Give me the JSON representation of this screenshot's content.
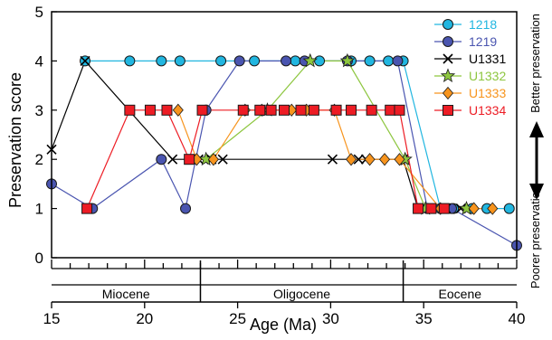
{
  "chart_data": {
    "type": "scatter",
    "xlabel": "Age (Ma)",
    "ylabel": "Preservation score",
    "xlim": [
      15,
      40
    ],
    "ylim": [
      0,
      5
    ],
    "x_ticks": [
      15,
      20,
      25,
      30,
      35,
      40
    ],
    "y_ticks": [
      0,
      1,
      2,
      3,
      4,
      5
    ],
    "grid": false,
    "legend_position": "top-right",
    "epochs": [
      {
        "name": "Miocene",
        "start": 15,
        "end": 23
      },
      {
        "name": "Oligocene",
        "start": 23,
        "end": 33.9
      },
      {
        "name": "Eocene",
        "start": 33.9,
        "end": 40
      }
    ],
    "right_annotations": {
      "top": "Better preservation",
      "bottom": "Poorer preservation"
    },
    "series": [
      {
        "name": "1218",
        "marker": "circle",
        "color": "#21b6e0",
        "label_color": "#21b6e0",
        "x": [
          16.8,
          19.2,
          20.9,
          21.9,
          24.1,
          25.9,
          28.1,
          29.4,
          31.1,
          32.1,
          33.1,
          33.9,
          35.9,
          36.6,
          37.6,
          38.4,
          39.6
        ],
        "y": [
          4,
          4,
          4,
          4,
          4,
          4,
          4,
          4,
          4,
          4,
          4,
          4,
          1,
          1,
          1,
          1,
          1
        ]
      },
      {
        "name": "1219",
        "marker": "circle",
        "color": "#4a55b0",
        "label_color": "#4a55b0",
        "x": [
          15.0,
          17.2,
          20.9,
          22.2,
          23.3,
          25.1,
          27.6,
          28.6,
          30.9,
          33.6,
          35.2,
          36.5,
          40.0
        ],
        "y": [
          1.5,
          1,
          2,
          1,
          3,
          4,
          4,
          4,
          4,
          4,
          1,
          1,
          0.25
        ]
      },
      {
        "name": "U1331",
        "marker": "x",
        "color": "#000000",
        "label_color": "#000000",
        "x": [
          15.0,
          16.8,
          21.5,
          22.9,
          23.6,
          24.2,
          30.1,
          31.5,
          31.9,
          33.9,
          34.7,
          35.4,
          36.2,
          37.0
        ],
        "y": [
          2.2,
          4,
          2,
          2,
          2,
          2,
          2,
          2,
          2,
          2,
          1,
          1,
          1,
          1
        ]
      },
      {
        "name": "U1332",
        "marker": "star",
        "color": "#8dc63f",
        "label_color": "#8dc63f",
        "x": [
          23.3,
          26.6,
          28.9,
          30.9,
          34.0,
          35.1,
          37.3
        ],
        "y": [
          2,
          3,
          4,
          4,
          2,
          1,
          1
        ]
      },
      {
        "name": "U1333",
        "marker": "diamond",
        "color": "#f7941d",
        "label_color": "#f7941d",
        "x": [
          21.8,
          22.8,
          23.7,
          25.4,
          26.3,
          27.9,
          28.7,
          30.2,
          31.1,
          32.1,
          32.9,
          33.7,
          35.9,
          37.7,
          38.7
        ],
        "y": [
          3,
          2,
          2,
          3,
          3,
          3,
          3,
          3,
          2,
          2,
          2,
          2,
          1,
          1,
          1
        ]
      },
      {
        "name": "U1334",
        "marker": "square",
        "color": "#ed1c24",
        "label_color": "#ed1c24",
        "x": [
          16.9,
          19.2,
          20.3,
          21.2,
          22.4,
          23.1,
          25.3,
          26.2,
          26.8,
          27.5,
          28.4,
          29.1,
          30.3,
          31.1,
          32.2,
          33.2,
          33.7,
          34.7,
          35.4,
          36.1
        ],
        "y": [
          1,
          3,
          3,
          3,
          2,
          3,
          3,
          3,
          3,
          3,
          3,
          3,
          3,
          3,
          3,
          3,
          3,
          1,
          1,
          1
        ]
      }
    ]
  }
}
